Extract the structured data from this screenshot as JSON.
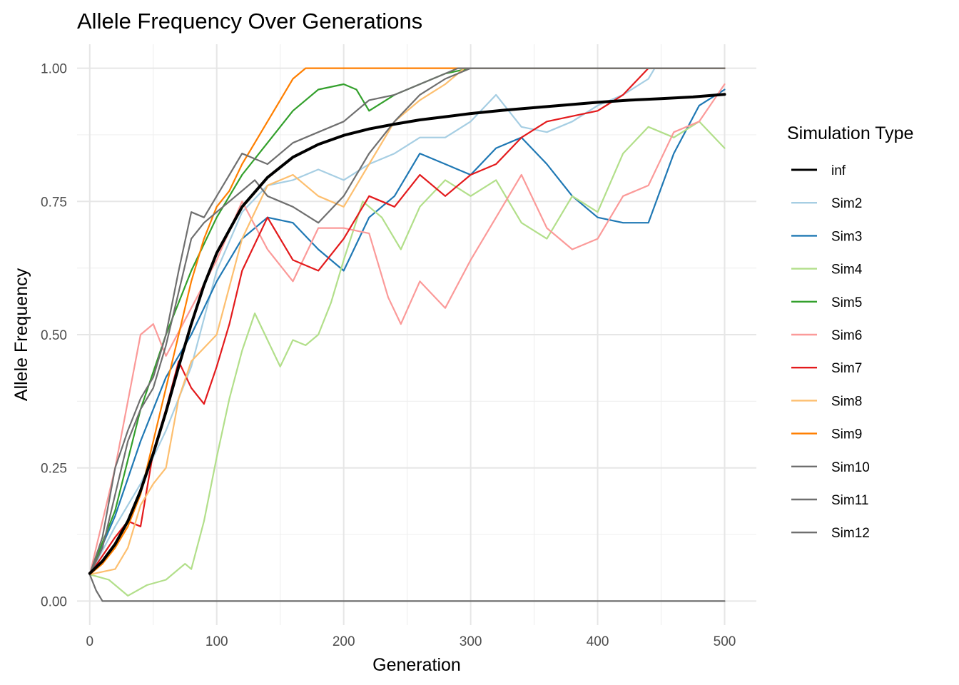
{
  "chart_data": {
    "type": "line",
    "title": "Allele Frequency Over Generations",
    "xlabel": "Generation",
    "ylabel": "Allele Frequency",
    "xlim": [
      -10,
      525
    ],
    "ylim": [
      -0.045,
      1.045
    ],
    "x_ticks": [
      0,
      100,
      200,
      300,
      400,
      500
    ],
    "x_tick_labels": [
      "0",
      "100",
      "200",
      "300",
      "400",
      "500"
    ],
    "y_ticks": [
      0.0,
      0.25,
      0.5,
      0.75,
      1.0
    ],
    "y_tick_labels": [
      "0.00",
      "0.25",
      "0.50",
      "0.75",
      "1.00"
    ],
    "grid": true,
    "legend": {
      "title": "Simulation Type",
      "position": "right"
    },
    "series": [
      {
        "name": "inf",
        "color": "#000000",
        "emphasis": true,
        "x": [
          0,
          10,
          20,
          30,
          40,
          50,
          60,
          70,
          80,
          90,
          100,
          120,
          140,
          160,
          180,
          200,
          220,
          240,
          260,
          280,
          300,
          325,
          350,
          375,
          400,
          425,
          450,
          475,
          500
        ],
        "y": [
          0.052,
          0.075,
          0.107,
          0.15,
          0.207,
          0.277,
          0.355,
          0.44,
          0.52,
          0.593,
          0.653,
          0.74,
          0.795,
          0.833,
          0.857,
          0.874,
          0.886,
          0.895,
          0.903,
          0.909,
          0.915,
          0.921,
          0.926,
          0.931,
          0.936,
          0.94,
          0.943,
          0.946,
          0.951
        ]
      },
      {
        "name": "Sim2",
        "color": "#A6CEE3",
        "x": [
          0,
          20,
          40,
          60,
          80,
          100,
          120,
          140,
          160,
          180,
          200,
          220,
          240,
          260,
          280,
          300,
          320,
          340,
          360,
          380,
          400,
          420,
          440,
          445,
          500
        ],
        "y": [
          0.05,
          0.14,
          0.22,
          0.32,
          0.44,
          0.62,
          0.73,
          0.78,
          0.79,
          0.81,
          0.79,
          0.82,
          0.84,
          0.87,
          0.87,
          0.9,
          0.95,
          0.89,
          0.88,
          0.9,
          0.93,
          0.95,
          0.98,
          1.0,
          1.0
        ]
      },
      {
        "name": "Sim3",
        "color": "#1F78B4",
        "x": [
          0,
          20,
          40,
          60,
          80,
          100,
          120,
          140,
          160,
          180,
          200,
          220,
          240,
          260,
          280,
          300,
          320,
          340,
          360,
          380,
          400,
          420,
          440,
          460,
          480,
          500
        ],
        "y": [
          0.05,
          0.16,
          0.3,
          0.42,
          0.5,
          0.6,
          0.68,
          0.72,
          0.71,
          0.66,
          0.62,
          0.72,
          0.76,
          0.84,
          0.82,
          0.8,
          0.85,
          0.87,
          0.82,
          0.76,
          0.72,
          0.71,
          0.71,
          0.84,
          0.93,
          0.96
        ]
      },
      {
        "name": "Sim4",
        "color": "#B2DF8A",
        "x": [
          0,
          15,
          30,
          45,
          60,
          75,
          80,
          90,
          100,
          110,
          120,
          130,
          140,
          150,
          160,
          170,
          180,
          190,
          200,
          215,
          230,
          245,
          260,
          280,
          300,
          320,
          340,
          360,
          380,
          400,
          420,
          440,
          460,
          480,
          500
        ],
        "y": [
          0.05,
          0.04,
          0.01,
          0.03,
          0.04,
          0.07,
          0.06,
          0.15,
          0.27,
          0.38,
          0.47,
          0.54,
          0.49,
          0.44,
          0.49,
          0.48,
          0.5,
          0.56,
          0.64,
          0.75,
          0.72,
          0.66,
          0.74,
          0.79,
          0.76,
          0.79,
          0.71,
          0.68,
          0.76,
          0.73,
          0.84,
          0.89,
          0.87,
          0.9,
          0.85
        ]
      },
      {
        "name": "Sim5",
        "color": "#33A02C",
        "x": [
          0,
          20,
          40,
          60,
          80,
          100,
          120,
          140,
          160,
          180,
          200,
          210,
          220,
          240,
          260,
          280,
          300,
          500
        ],
        "y": [
          0.05,
          0.17,
          0.36,
          0.5,
          0.62,
          0.72,
          0.8,
          0.86,
          0.92,
          0.96,
          0.97,
          0.96,
          0.92,
          0.95,
          0.97,
          0.99,
          1.0,
          1.0
        ]
      },
      {
        "name": "Sim6",
        "color": "#FB9A99",
        "x": [
          0,
          20,
          40,
          50,
          60,
          80,
          100,
          120,
          140,
          160,
          180,
          200,
          220,
          235,
          245,
          260,
          280,
          300,
          320,
          340,
          360,
          380,
          400,
          420,
          440,
          460,
          480,
          500
        ],
        "y": [
          0.05,
          0.25,
          0.5,
          0.52,
          0.46,
          0.55,
          0.64,
          0.75,
          0.66,
          0.6,
          0.7,
          0.7,
          0.69,
          0.57,
          0.52,
          0.6,
          0.55,
          0.64,
          0.72,
          0.8,
          0.7,
          0.66,
          0.68,
          0.76,
          0.78,
          0.88,
          0.9,
          0.97
        ]
      },
      {
        "name": "Sim7",
        "color": "#E31A1C",
        "x": [
          0,
          20,
          30,
          40,
          50,
          60,
          70,
          80,
          90,
          100,
          110,
          120,
          140,
          160,
          180,
          200,
          220,
          240,
          260,
          280,
          300,
          320,
          340,
          360,
          380,
          400,
          420,
          440,
          500
        ],
        "y": [
          0.05,
          0.12,
          0.15,
          0.14,
          0.28,
          0.36,
          0.45,
          0.4,
          0.37,
          0.44,
          0.52,
          0.62,
          0.72,
          0.64,
          0.62,
          0.68,
          0.76,
          0.74,
          0.8,
          0.76,
          0.8,
          0.82,
          0.87,
          0.9,
          0.91,
          0.92,
          0.95,
          1.0,
          1.0
        ]
      },
      {
        "name": "Sim8",
        "color": "#FDBF6F",
        "x": [
          0,
          20,
          30,
          40,
          50,
          60,
          70,
          80,
          100,
          120,
          140,
          160,
          180,
          200,
          220,
          240,
          260,
          280,
          295,
          500
        ],
        "y": [
          0.05,
          0.06,
          0.1,
          0.18,
          0.22,
          0.25,
          0.38,
          0.45,
          0.5,
          0.68,
          0.78,
          0.8,
          0.76,
          0.74,
          0.82,
          0.9,
          0.94,
          0.97,
          1.0,
          1.0
        ]
      },
      {
        "name": "Sim9",
        "color": "#FF7F00",
        "x": [
          0,
          10,
          20,
          30,
          40,
          50,
          60,
          70,
          80,
          90,
          100,
          110,
          120,
          130,
          140,
          150,
          160,
          170,
          500
        ],
        "y": [
          0.05,
          0.07,
          0.1,
          0.14,
          0.2,
          0.3,
          0.4,
          0.5,
          0.6,
          0.68,
          0.74,
          0.77,
          0.82,
          0.86,
          0.9,
          0.94,
          0.98,
          1.0,
          1.0
        ]
      },
      {
        "name": "Sim10",
        "color": "#6F6F6F",
        "x": [
          0,
          10,
          20,
          30,
          40,
          50,
          60,
          70,
          80,
          90,
          100,
          110,
          120,
          140,
          160,
          180,
          200,
          220,
          240,
          260,
          280,
          290,
          500
        ],
        "y": [
          0.05,
          0.12,
          0.25,
          0.32,
          0.38,
          0.42,
          0.5,
          0.62,
          0.73,
          0.72,
          0.76,
          0.8,
          0.84,
          0.82,
          0.86,
          0.88,
          0.9,
          0.94,
          0.95,
          0.97,
          0.99,
          1.0,
          1.0
        ]
      },
      {
        "name": "Sim11",
        "color": "#6F6F6F",
        "x": [
          0,
          10,
          20,
          30,
          40,
          50,
          60,
          70,
          80,
          90,
          100,
          110,
          120,
          130,
          140,
          160,
          180,
          200,
          220,
          240,
          260,
          280,
          300,
          500
        ],
        "y": [
          0.05,
          0.1,
          0.2,
          0.3,
          0.36,
          0.4,
          0.48,
          0.58,
          0.68,
          0.71,
          0.73,
          0.75,
          0.77,
          0.79,
          0.76,
          0.74,
          0.71,
          0.76,
          0.84,
          0.9,
          0.95,
          0.98,
          1.0,
          1.0
        ]
      },
      {
        "name": "Sim12",
        "color": "#6F6F6F",
        "x": [
          0,
          5,
          10,
          500
        ],
        "y": [
          0.05,
          0.02,
          0.0,
          0.0
        ]
      }
    ]
  }
}
